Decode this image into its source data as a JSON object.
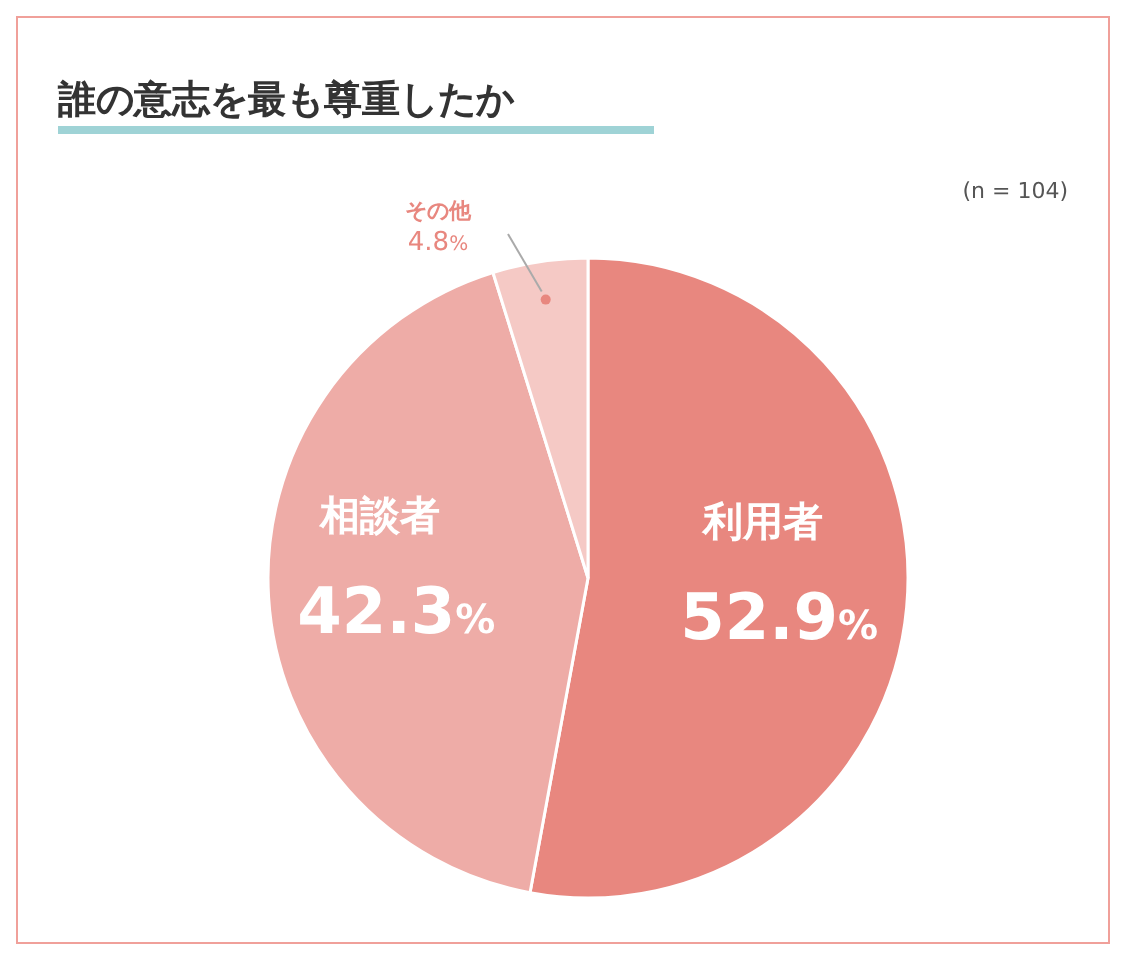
{
  "chart_data": {
    "type": "pie",
    "title": "誰の意志を最も尊重したか",
    "annotations": [
      "(n = 104)"
    ],
    "categories": [
      "利用者",
      "相談者",
      "その他"
    ],
    "values": [
      52.9,
      42.3,
      4.8
    ],
    "value_labels": [
      "52.9%",
      "42.3%",
      "4.8%"
    ],
    "colors": [
      "#e8877f",
      "#eeaca7",
      "#f5c9c5"
    ]
  }
}
